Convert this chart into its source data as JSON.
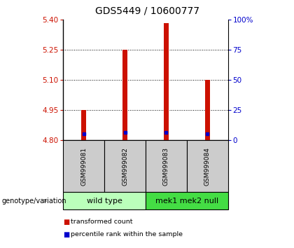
{
  "title": "GDS5449 / 10600777",
  "samples": [
    "GSM999081",
    "GSM999082",
    "GSM999083",
    "GSM999084"
  ],
  "bar_bottoms": [
    4.8,
    4.8,
    4.8,
    4.8
  ],
  "bar_tops": [
    4.95,
    5.25,
    5.385,
    5.1
  ],
  "blue_values": [
    4.833,
    4.84,
    4.84,
    4.833
  ],
  "ylim": [
    4.8,
    5.4
  ],
  "yticks_left": [
    4.8,
    4.95,
    5.1,
    5.25,
    5.4
  ],
  "yticks_right": [
    0,
    25,
    50,
    75,
    100
  ],
  "yticks_right_vals": [
    4.8,
    4.95,
    5.1,
    5.25,
    5.4
  ],
  "grid_lines": [
    4.95,
    5.1,
    5.25
  ],
  "bar_color": "#cc1100",
  "blue_color": "#0000cc",
  "group1_label": "wild type",
  "group2_label": "mek1 mek2 null",
  "group_bg1": "#bbffbb",
  "group_bg2": "#44dd44",
  "sample_bg": "#cccccc",
  "genotype_label": "genotype/variation",
  "legend_red": "transformed count",
  "legend_blue": "percentile rank within the sample",
  "left_tick_color": "#cc1100",
  "right_tick_color": "#0000cc",
  "title_fontsize": 10,
  "bar_width": 0.12
}
